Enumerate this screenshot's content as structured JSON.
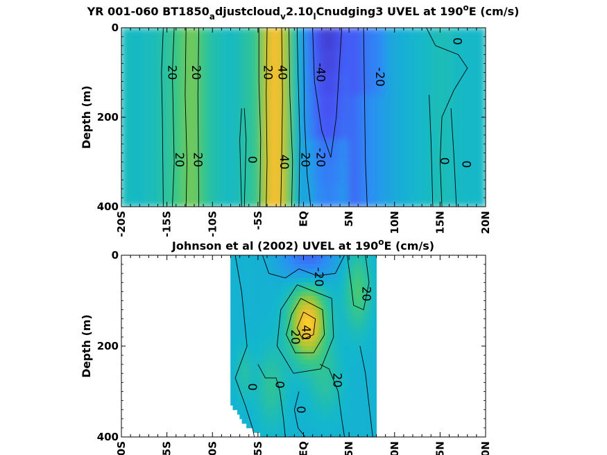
{
  "chart_data": [
    {
      "type": "heatmap",
      "title_parts": [
        "YR 001-060 BT1850",
        "a",
        "djustcloud",
        "v",
        "2.10",
        "l",
        "Cnudging3 UVEL at 190",
        "o",
        "E (cm/s)"
      ],
      "ylabel": "Depth (m)",
      "xlim": [
        -20,
        20
      ],
      "ylim": [
        0,
        400
      ],
      "y_reversed": true,
      "x_ticks": [
        -20,
        -15,
        -10,
        -5,
        0,
        5,
        10,
        15,
        20
      ],
      "x_tick_labels": [
        "-20S",
        "-15S",
        "-10S",
        "-5S",
        "EQ",
        "5N",
        "10N",
        "15N",
        "20N"
      ],
      "y_ticks": [
        0,
        200,
        400
      ],
      "y_tick_labels": [
        "0",
        "200",
        "400"
      ],
      "colormap": "parula",
      "color_range": [
        -60,
        60
      ],
      "lat_profile": [
        [
          -20,
          -2
        ],
        [
          -18,
          -4
        ],
        [
          -16,
          0
        ],
        [
          -15,
          5
        ],
        [
          -14,
          10
        ],
        [
          -13,
          18
        ],
        [
          -12,
          22
        ],
        [
          -11,
          10
        ],
        [
          -10,
          2
        ],
        [
          -8,
          -4
        ],
        [
          -7,
          0
        ],
        [
          -6,
          5
        ],
        [
          -5,
          10
        ],
        [
          -4.5,
          25
        ],
        [
          -4,
          36
        ],
        [
          -3.5,
          44
        ],
        [
          -3,
          47
        ],
        [
          -2.5,
          42
        ],
        [
          -2,
          30
        ],
        [
          -1.5,
          18
        ],
        [
          -1,
          5
        ],
        [
          -0.5,
          -8
        ],
        [
          0,
          -18
        ],
        [
          1,
          -35
        ],
        [
          2,
          -48
        ],
        [
          3,
          -50
        ],
        [
          4,
          -44
        ],
        [
          5,
          -38
        ],
        [
          6,
          -32
        ],
        [
          7,
          -25
        ],
        [
          8,
          -20
        ],
        [
          10,
          -12
        ],
        [
          12,
          -7
        ],
        [
          14,
          -3
        ],
        [
          15,
          0
        ],
        [
          16,
          -2
        ],
        [
          18,
          -5
        ],
        [
          20,
          -4
        ]
      ],
      "contour_labels": [
        {
          "text": "20",
          "x": -15.3,
          "y": 100
        },
        {
          "text": "20",
          "x": -12.7,
          "y": 100
        },
        {
          "text": "20",
          "x": -4.8,
          "y": 100
        },
        {
          "text": "40",
          "x": -3.2,
          "y": 100
        },
        {
          "text": "-40",
          "x": 1.0,
          "y": 100
        },
        {
          "text": "-20",
          "x": 7.5,
          "y": 110
        },
        {
          "text": "0",
          "x": 16.0,
          "y": 30
        },
        {
          "text": "20",
          "x": -14.5,
          "y": 295
        },
        {
          "text": "20",
          "x": -12.5,
          "y": 295
        },
        {
          "text": "0",
          "x": -6.5,
          "y": 295
        },
        {
          "text": "40",
          "x": -3.0,
          "y": 300
        },
        {
          "text": "20",
          "x": -0.7,
          "y": 295
        },
        {
          "text": "-20",
          "x": 1.0,
          "y": 290
        },
        {
          "text": "0",
          "x": 14.6,
          "y": 298
        },
        {
          "text": "0",
          "x": 17.0,
          "y": 305
        }
      ]
    },
    {
      "type": "heatmap",
      "title_parts": [
        "Johnson et al (2002) UVEL at 190",
        "o",
        "E (cm/s)"
      ],
      "ylabel": "Depth (m)",
      "xlim": [
        -20,
        20
      ],
      "ylim": [
        0,
        400
      ],
      "y_reversed": true,
      "data_x_extent": [
        -8,
        8
      ],
      "x_ticks": [
        -20,
        -15,
        -10,
        -5,
        0,
        5,
        10,
        15,
        20
      ],
      "x_tick_labels": [
        "-20S",
        "-15S",
        "-10S",
        "-5S",
        "EQ",
        "5N",
        "10N",
        "15N",
        "20N"
      ],
      "y_ticks": [
        0,
        200,
        400
      ],
      "y_tick_labels": [
        "0",
        "200",
        "400"
      ],
      "colormap": "parula",
      "color_range": [
        -60,
        60
      ],
      "core_max": {
        "x": 0.5,
        "y": 150,
        "value": 45
      },
      "contour_labels": [
        {
          "text": "-20",
          "x": 0.8,
          "y": 48
        },
        {
          "text": "20",
          "x": 6.0,
          "y": 85
        },
        {
          "text": "20",
          "x": -1.8,
          "y": 180
        },
        {
          "text": "40",
          "x": -0.6,
          "y": 170
        },
        {
          "text": "0",
          "x": -6.5,
          "y": 290
        },
        {
          "text": "0",
          "x": -3.5,
          "y": 285
        },
        {
          "text": "20",
          "x": 2.8,
          "y": 275
        },
        {
          "text": "0",
          "x": -1.2,
          "y": 340
        }
      ]
    }
  ]
}
